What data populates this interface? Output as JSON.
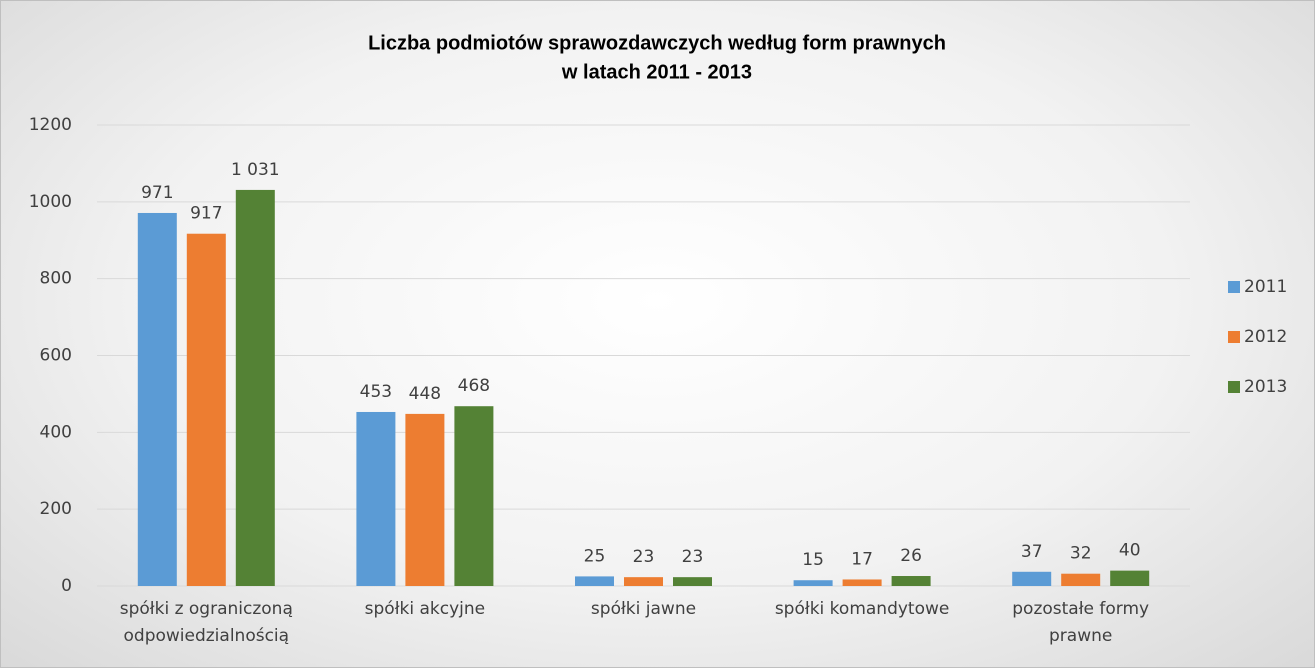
{
  "chart_data": {
    "type": "bar",
    "title": [
      "Liczba podmiotów sprawozdawczych według form prawnych",
      "w latach 2011 - 2013"
    ],
    "categories": [
      "spółki z ograniczoną odpowiedzialnością",
      "spółki akcyjne",
      "spółki jawne",
      "spółki komandytowe",
      "pozostałe formy prawne"
    ],
    "series": [
      {
        "name": "2011",
        "color": "#5b9bd5",
        "values": [
          971,
          453,
          25,
          15,
          37
        ]
      },
      {
        "name": "2012",
        "color": "#ed7d31",
        "values": [
          917,
          448,
          23,
          17,
          32
        ]
      },
      {
        "name": "2013",
        "color": "#548235",
        "values": [
          1031,
          468,
          23,
          26,
          40
        ],
        "value_labels": [
          "1 031",
          "468",
          "23",
          "26",
          "40"
        ]
      }
    ],
    "ylim": [
      0,
      1200
    ],
    "yticks": [
      0,
      200,
      400,
      600,
      800,
      1000,
      1200
    ],
    "grid": true,
    "legend": "right"
  }
}
